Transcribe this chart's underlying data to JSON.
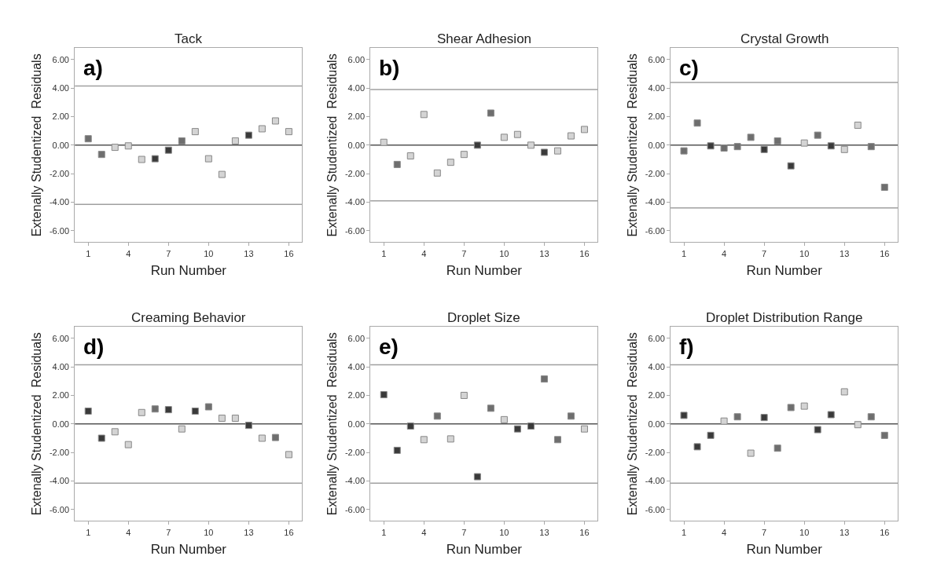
{
  "chart_data": [
    {
      "type": "scatter",
      "title": "Tack",
      "xlabel": "Run Number",
      "ylabel": "Extenally Studentized  Residuals",
      "annotations": [
        "a)"
      ],
      "x": [
        1,
        2,
        3,
        4,
        5,
        6,
        7,
        8,
        9,
        10,
        11,
        12,
        13,
        14,
        15,
        16
      ],
      "values": [
        0.45,
        -0.65,
        -0.15,
        -0.05,
        -1.0,
        -0.95,
        -0.35,
        0.3,
        0.95,
        -0.95,
        -2.05,
        0.3,
        0.7,
        1.15,
        1.7,
        0.95
      ],
      "colors": [
        "#6e6e6e",
        "#6e6e6e",
        "#d4d4d4",
        "#d4d4d4",
        "#d4d4d4",
        "#3a3a3a",
        "#3a3a3a",
        "#6e6e6e",
        "#d4d4d4",
        "#d4d4d4",
        "#d4d4d4",
        "#d4d4d4",
        "#3a3a3a",
        "#d4d4d4",
        "#d4d4d4",
        "#d4d4d4"
      ],
      "xlim": [
        0,
        17
      ],
      "ylim": [
        -6.8,
        6.8
      ],
      "xticks": [
        1,
        4,
        7,
        10,
        13,
        16
      ],
      "yticks": [
        {
          "value": -6,
          "label": "-6.00"
        },
        {
          "value": -4,
          "label": "-4.00"
        },
        {
          "value": -2,
          "label": "-2.00"
        },
        {
          "value": 0,
          "label": "0.00"
        },
        {
          "value": 2,
          "label": "2.00"
        },
        {
          "value": 4,
          "label": "4.00"
        },
        {
          "value": 6,
          "label": "6.00"
        }
      ],
      "ref_lines": [
        {
          "axis": "y",
          "value": 4.15,
          "color": "#a0a0a0"
        },
        {
          "axis": "y",
          "value": 0,
          "color": "#555555"
        },
        {
          "axis": "y",
          "value": -4.15,
          "color": "#a0a0a0"
        }
      ],
      "marker": "square",
      "grid": false
    },
    {
      "type": "scatter",
      "title": "Shear Adhesion",
      "xlabel": "Run Number",
      "ylabel": "Extenally Studentized  Residuals",
      "annotations": [
        "b)"
      ],
      "x": [
        1,
        2,
        3,
        4,
        5,
        6,
        7,
        8,
        9,
        10,
        11,
        12,
        13,
        14,
        15,
        16
      ],
      "values": [
        0.2,
        -1.35,
        -0.75,
        2.15,
        -1.95,
        -1.2,
        -0.65,
        0,
        2.25,
        0.55,
        0.75,
        0,
        -0.5,
        -0.4,
        0.65,
        1.1
      ],
      "colors": [
        "#d4d4d4",
        "#6e6e6e",
        "#d4d4d4",
        "#d4d4d4",
        "#d4d4d4",
        "#d4d4d4",
        "#d4d4d4",
        "#3a3a3a",
        "#6e6e6e",
        "#d4d4d4",
        "#d4d4d4",
        "#d4d4d4",
        "#3a3a3a",
        "#d4d4d4",
        "#d4d4d4",
        "#d4d4d4"
      ],
      "xlim": [
        0,
        17
      ],
      "ylim": [
        -6.8,
        6.8
      ],
      "xticks": [
        1,
        4,
        7,
        10,
        13,
        16
      ],
      "yticks": [
        {
          "value": -6,
          "label": "-6.00"
        },
        {
          "value": -4,
          "label": "-4.00"
        },
        {
          "value": -2,
          "label": "-2.00"
        },
        {
          "value": 0,
          "label": "0.00"
        },
        {
          "value": 2,
          "label": "2.00"
        },
        {
          "value": 4,
          "label": "4.00"
        },
        {
          "value": 6,
          "label": "6.00"
        }
      ],
      "ref_lines": [
        {
          "axis": "y",
          "value": 3.9,
          "color": "#a0a0a0"
        },
        {
          "axis": "y",
          "value": 0,
          "color": "#555555"
        },
        {
          "axis": "y",
          "value": -3.9,
          "color": "#a0a0a0"
        }
      ],
      "marker": "square",
      "grid": false
    },
    {
      "type": "scatter",
      "title": "Crystal Growth",
      "xlabel": "Run Number",
      "ylabel": "Extenally Studentized  Residuals",
      "annotations": [
        "c)"
      ],
      "x": [
        1,
        2,
        3,
        4,
        5,
        6,
        7,
        8,
        9,
        10,
        11,
        12,
        13,
        14,
        15,
        16
      ],
      "values": [
        -0.4,
        1.55,
        -0.05,
        -0.2,
        -0.1,
        0.55,
        -0.3,
        0.3,
        -1.45,
        0.15,
        0.7,
        -0.05,
        -0.3,
        1.4,
        -0.1,
        -2.95
      ],
      "colors": [
        "#6e6e6e",
        "#6e6e6e",
        "#3a3a3a",
        "#6e6e6e",
        "#6e6e6e",
        "#6e6e6e",
        "#3a3a3a",
        "#6e6e6e",
        "#3a3a3a",
        "#d4d4d4",
        "#6e6e6e",
        "#3a3a3a",
        "#d4d4d4",
        "#d4d4d4",
        "#6e6e6e",
        "#6e6e6e"
      ],
      "xlim": [
        0,
        17
      ],
      "ylim": [
        -6.8,
        6.8
      ],
      "xticks": [
        1,
        4,
        7,
        10,
        13,
        16
      ],
      "yticks": [
        {
          "value": -6,
          "label": "-6.00"
        },
        {
          "value": -4,
          "label": "-4.00"
        },
        {
          "value": -2,
          "label": "-2.00"
        },
        {
          "value": 0,
          "label": "0.00"
        },
        {
          "value": 2,
          "label": "2.00"
        },
        {
          "value": 4,
          "label": "4.00"
        },
        {
          "value": 6,
          "label": "6.00"
        }
      ],
      "ref_lines": [
        {
          "axis": "y",
          "value": 4.4,
          "color": "#a0a0a0"
        },
        {
          "axis": "y",
          "value": 0,
          "color": "#555555"
        },
        {
          "axis": "y",
          "value": -4.4,
          "color": "#a0a0a0"
        }
      ],
      "marker": "square",
      "grid": false
    },
    {
      "type": "scatter",
      "title": "Creaming Behavior",
      "xlabel": "Run Number",
      "ylabel": "Extenally Studentized  Residuals",
      "annotations": [
        "d)"
      ],
      "x": [
        1,
        2,
        3,
        4,
        5,
        6,
        7,
        8,
        9,
        10,
        11,
        12,
        13,
        14,
        15,
        16
      ],
      "values": [
        0.9,
        -1.0,
        -0.55,
        -1.45,
        0.8,
        1.05,
        1.0,
        -0.35,
        0.9,
        1.2,
        0.4,
        0.4,
        -0.1,
        -1.0,
        -0.95,
        -2.15
      ],
      "colors": [
        "#3a3a3a",
        "#3a3a3a",
        "#d4d4d4",
        "#d4d4d4",
        "#d4d4d4",
        "#6e6e6e",
        "#3a3a3a",
        "#d4d4d4",
        "#3a3a3a",
        "#6e6e6e",
        "#d4d4d4",
        "#d4d4d4",
        "#3a3a3a",
        "#d4d4d4",
        "#6e6e6e",
        "#d4d4d4"
      ],
      "xlim": [
        0,
        17
      ],
      "ylim": [
        -6.8,
        6.8
      ],
      "xticks": [
        1,
        4,
        7,
        10,
        13,
        16
      ],
      "yticks": [
        {
          "value": -6,
          "label": "-6.00"
        },
        {
          "value": -4,
          "label": "-4.00"
        },
        {
          "value": -2,
          "label": "-2.00"
        },
        {
          "value": 0,
          "label": "0.00"
        },
        {
          "value": 2,
          "label": "2.00"
        },
        {
          "value": 4,
          "label": "4.00"
        },
        {
          "value": 6,
          "label": "6.00"
        }
      ],
      "ref_lines": [
        {
          "axis": "y",
          "value": 4.15,
          "color": "#a0a0a0"
        },
        {
          "axis": "y",
          "value": 0,
          "color": "#555555"
        },
        {
          "axis": "y",
          "value": -4.15,
          "color": "#a0a0a0"
        }
      ],
      "marker": "square",
      "grid": false
    },
    {
      "type": "scatter",
      "title": "Droplet Size",
      "xlabel": "Run Number",
      "ylabel": "Extenally Studentized  Residuals",
      "annotations": [
        "e)"
      ],
      "x": [
        1,
        2,
        3,
        4,
        5,
        6,
        7,
        8,
        9,
        10,
        11,
        12,
        13,
        14,
        15,
        16
      ],
      "values": [
        2.05,
        -1.85,
        -0.15,
        -1.1,
        0.55,
        -1.05,
        2.0,
        -3.7,
        1.1,
        0.3,
        -0.35,
        -0.15,
        3.15,
        -1.1,
        0.55,
        -0.35
      ],
      "colors": [
        "#3a3a3a",
        "#3a3a3a",
        "#3a3a3a",
        "#d4d4d4",
        "#6e6e6e",
        "#d4d4d4",
        "#d4d4d4",
        "#3a3a3a",
        "#6e6e6e",
        "#d4d4d4",
        "#3a3a3a",
        "#3a3a3a",
        "#6e6e6e",
        "#6e6e6e",
        "#6e6e6e",
        "#d4d4d4"
      ],
      "xlim": [
        0,
        17
      ],
      "ylim": [
        -6.8,
        6.8
      ],
      "xticks": [
        1,
        4,
        7,
        10,
        13,
        16
      ],
      "yticks": [
        {
          "value": -6,
          "label": "-6.00"
        },
        {
          "value": -4,
          "label": "-4.00"
        },
        {
          "value": -2,
          "label": "-2.00"
        },
        {
          "value": 0,
          "label": "0.00"
        },
        {
          "value": 2,
          "label": "2.00"
        },
        {
          "value": 4,
          "label": "4.00"
        },
        {
          "value": 6,
          "label": "6.00"
        }
      ],
      "ref_lines": [
        {
          "axis": "y",
          "value": 4.15,
          "color": "#a0a0a0"
        },
        {
          "axis": "y",
          "value": 0,
          "color": "#555555"
        },
        {
          "axis": "y",
          "value": -4.15,
          "color": "#a0a0a0"
        }
      ],
      "marker": "square",
      "grid": false
    },
    {
      "type": "scatter",
      "title": "Droplet Distribution Range",
      "xlabel": "Run Number",
      "ylabel": "Extenally Studentized  Residuals",
      "annotations": [
        "f)"
      ],
      "x": [
        1,
        2,
        3,
        4,
        5,
        6,
        7,
        8,
        9,
        10,
        11,
        12,
        13,
        14,
        15,
        16
      ],
      "values": [
        0.6,
        -1.6,
        -0.8,
        0.2,
        0.5,
        -2.05,
        0.45,
        -1.7,
        1.15,
        1.25,
        -0.4,
        0.65,
        2.25,
        -0.05,
        0.5,
        -0.8
      ],
      "colors": [
        "#3a3a3a",
        "#3a3a3a",
        "#3a3a3a",
        "#d4d4d4",
        "#6e6e6e",
        "#d4d4d4",
        "#3a3a3a",
        "#6e6e6e",
        "#6e6e6e",
        "#d4d4d4",
        "#3a3a3a",
        "#3a3a3a",
        "#d4d4d4",
        "#d4d4d4",
        "#6e6e6e",
        "#6e6e6e"
      ],
      "xlim": [
        0,
        17
      ],
      "ylim": [
        -6.8,
        6.8
      ],
      "xticks": [
        1,
        4,
        7,
        10,
        13,
        16
      ],
      "yticks": [
        {
          "value": -6,
          "label": "-6.00"
        },
        {
          "value": -4,
          "label": "-4.00"
        },
        {
          "value": -2,
          "label": "-2.00"
        },
        {
          "value": 0,
          "label": "0.00"
        },
        {
          "value": 2,
          "label": "2.00"
        },
        {
          "value": 4,
          "label": "4.00"
        },
        {
          "value": 6,
          "label": "6.00"
        }
      ],
      "ref_lines": [
        {
          "axis": "y",
          "value": 4.15,
          "color": "#a0a0a0"
        },
        {
          "axis": "y",
          "value": 0,
          "color": "#555555"
        },
        {
          "axis": "y",
          "value": -4.15,
          "color": "#a0a0a0"
        }
      ],
      "marker": "square",
      "grid": false
    }
  ]
}
